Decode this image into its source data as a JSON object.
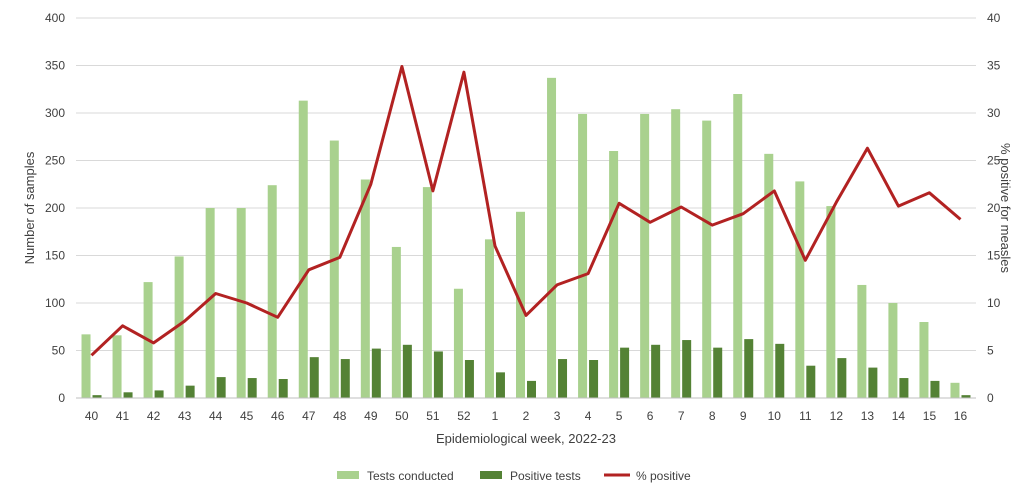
{
  "chart_data": {
    "type": "bar",
    "categories": [
      "40",
      "41",
      "42",
      "43",
      "44",
      "45",
      "46",
      "47",
      "48",
      "49",
      "50",
      "51",
      "52",
      "1",
      "2",
      "3",
      "4",
      "5",
      "6",
      "7",
      "8",
      "9",
      "10",
      "11",
      "12",
      "13",
      "14",
      "15",
      "16"
    ],
    "series": [
      {
        "name": "Tests conducted",
        "type": "bar",
        "axis": "left",
        "color": "#a9d18e",
        "values": [
          67,
          66,
          122,
          149,
          200,
          200,
          224,
          313,
          271,
          230,
          159,
          222,
          115,
          167,
          196,
          337,
          299,
          260,
          299,
          304,
          292,
          320,
          257,
          228,
          202,
          119,
          100,
          80,
          16
        ]
      },
      {
        "name": "Positive tests",
        "type": "bar",
        "axis": "left",
        "color": "#548235",
        "values": [
          3,
          6,
          8,
          13,
          22,
          21,
          20,
          43,
          41,
          52,
          56,
          49,
          40,
          27,
          18,
          41,
          40,
          53,
          56,
          61,
          53,
          62,
          57,
          34,
          42,
          32,
          21,
          18,
          3
        ]
      },
      {
        "name": "% positive",
        "type": "line",
        "axis": "right",
        "color": "#b22222",
        "values": [
          4.5,
          7.6,
          5.8,
          8.1,
          11.0,
          10.0,
          8.5,
          13.5,
          14.8,
          22.5,
          34.9,
          21.8,
          34.3,
          16.0,
          8.7,
          11.9,
          13.1,
          20.5,
          18.5,
          20.1,
          18.2,
          19.4,
          21.8,
          14.5,
          20.6,
          26.3,
          20.2,
          21.6,
          18.8
        ]
      }
    ],
    "xlabel": "Epidemiological week, 2022-23",
    "ylabel": "Number of samples",
    "y2label": "% positive for measles",
    "ylim": [
      0,
      400
    ],
    "y2lim": [
      0,
      40
    ],
    "yticks": [
      0,
      50,
      100,
      150,
      200,
      250,
      300,
      350,
      400
    ],
    "y2ticks": [
      0,
      5,
      10,
      15,
      20,
      25,
      30,
      35,
      40
    ],
    "grid": true,
    "legend": "bottom"
  }
}
